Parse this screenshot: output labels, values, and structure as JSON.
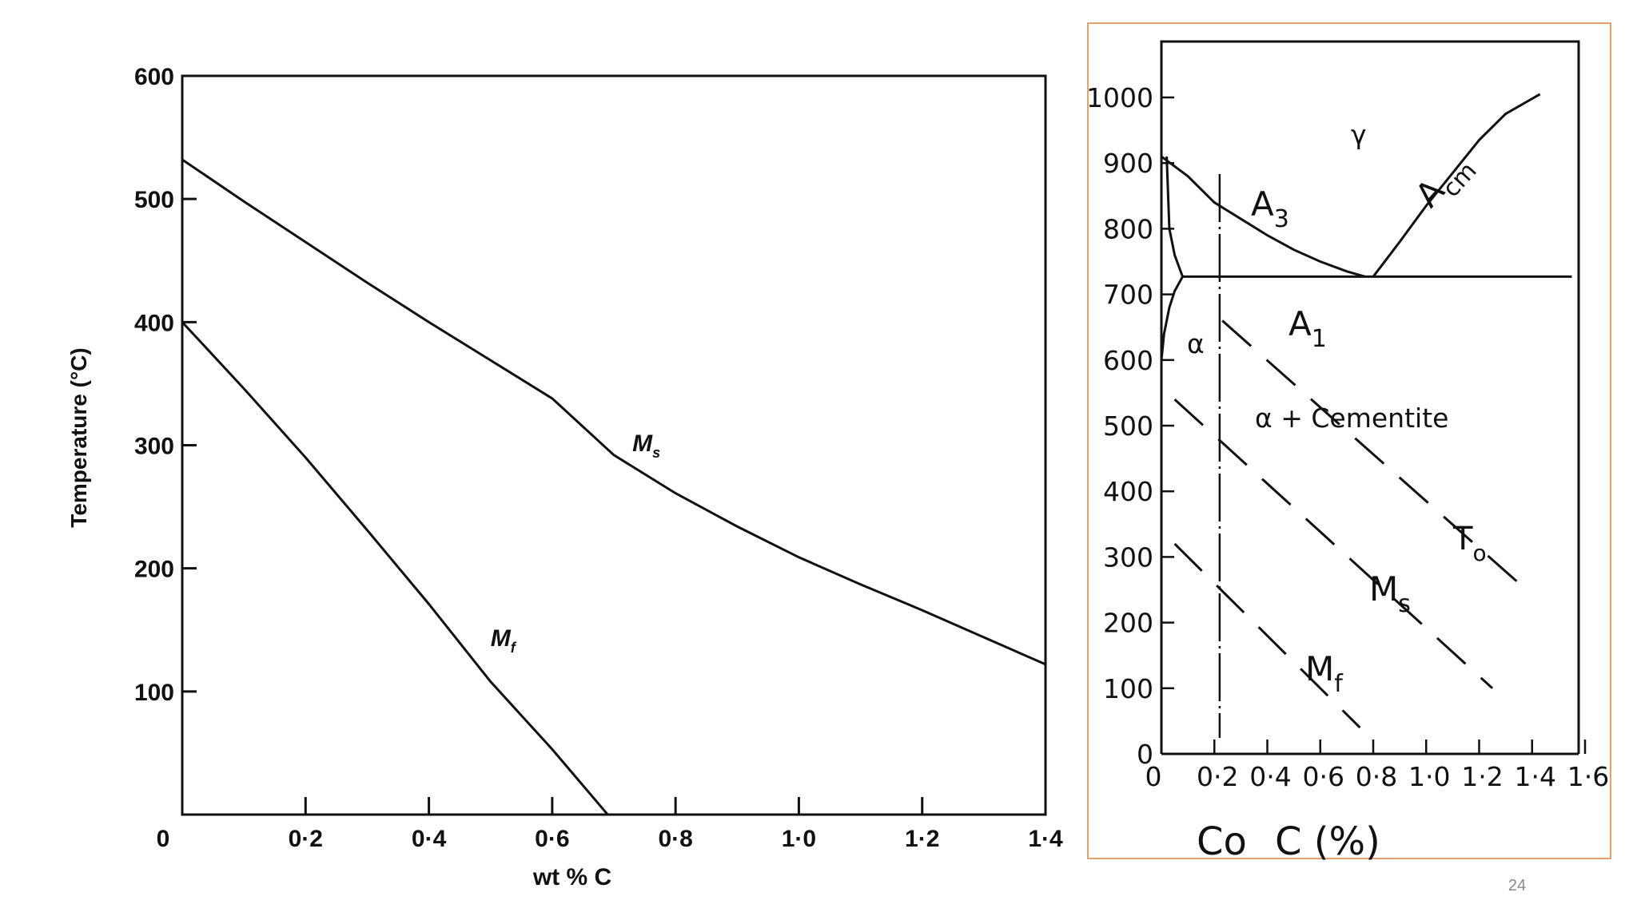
{
  "slide": {
    "page_number": "24",
    "border_color": "#e8a06a"
  },
  "chart_data": [
    {
      "type": "line",
      "title": "",
      "xlabel": "wt % C",
      "ylabel": "Temperature (°C)",
      "xlim": [
        0,
        1.4
      ],
      "ylim": [
        0,
        600
      ],
      "x_ticks": [
        0,
        0.2,
        0.4,
        0.6,
        0.8,
        1.0,
        1.2,
        1.4
      ],
      "x_tick_labels": [
        "0",
        "0·2",
        "0·4",
        "0·6",
        "0·8",
        "1·0",
        "1·2",
        "1·4"
      ],
      "y_ticks": [
        100,
        200,
        300,
        400,
        500,
        600
      ],
      "y_tick_labels": [
        "100",
        "200",
        "300",
        "400",
        "500",
        "600"
      ],
      "grid": false,
      "series": [
        {
          "name": "Ms",
          "label_main": "M",
          "label_sub": "s",
          "label_at": [
            0.73,
            295
          ],
          "x": [
            0,
            0.1,
            0.2,
            0.3,
            0.4,
            0.5,
            0.6,
            0.7,
            0.8,
            0.9,
            1.0,
            1.1,
            1.2,
            1.3,
            1.4
          ],
          "y": [
            532,
            498,
            465,
            432,
            400,
            369,
            338,
            292,
            261,
            234,
            209,
            187,
            166,
            144,
            122
          ]
        },
        {
          "name": "Mf",
          "label_main": "M",
          "label_sub": "f",
          "label_at": [
            0.5,
            137
          ],
          "x": [
            0,
            0.1,
            0.2,
            0.3,
            0.4,
            0.5,
            0.6,
            0.69
          ],
          "y": [
            400,
            346,
            290,
            231,
            171,
            108,
            53,
            0
          ]
        }
      ]
    },
    {
      "type": "line",
      "title": "",
      "xlabel_co": "Co",
      "xlabel": "C (%)",
      "ylabel": "",
      "xlim": [
        0,
        1.6
      ],
      "ylim": [
        0,
        1000
      ],
      "x_ticks": [
        0,
        0.2,
        0.4,
        0.6,
        0.8,
        1.0,
        1.2,
        1.4,
        1.6
      ],
      "x_tick_labels": [
        "0",
        "0·2",
        "0·4",
        "0·6",
        "0·8",
        "1·0",
        "1·2",
        "1·4",
        "1·6"
      ],
      "y_ticks": [
        0,
        100,
        200,
        300,
        400,
        500,
        600,
        700,
        800,
        900,
        1000
      ],
      "y_tick_labels": [
        "0",
        "100",
        "200",
        "300",
        "400",
        "500",
        "600",
        "700",
        "800",
        "900",
        "1000"
      ],
      "grid": false,
      "vertical_marker_x": 0.22,
      "annotations": {
        "gamma": "γ",
        "alpha": "α",
        "alpha_cementite": "α + Cementite",
        "a3_main": "A",
        "a3_sub": "3",
        "acm_main": "A",
        "acm_sub": "cm",
        "a1_main": "A",
        "a1_sub": "1",
        "to_main": "T",
        "to_sub": "o",
        "ms_main": "M",
        "ms_sub": "s",
        "mf_main": "M",
        "mf_sub": "f"
      },
      "series": [
        {
          "name": "A3",
          "style": "solid",
          "x": [
            0,
            0.1,
            0.2,
            0.3,
            0.4,
            0.5,
            0.6,
            0.7,
            0.77
          ],
          "y": [
            910,
            880,
            840,
            815,
            790,
            768,
            750,
            735,
            727
          ]
        },
        {
          "name": "Acm",
          "style": "solid",
          "x": [
            0.8,
            0.9,
            1.0,
            1.1,
            1.2,
            1.3,
            1.43
          ],
          "y": [
            727,
            780,
            835,
            885,
            935,
            975,
            1005
          ]
        },
        {
          "name": "A1",
          "style": "solid",
          "x": [
            0.08,
            1.55
          ],
          "y": [
            727,
            727
          ]
        },
        {
          "name": "alpha boundary",
          "style": "solid",
          "x": [
            0.02,
            0.03,
            0.05,
            0.08
          ],
          "y": [
            910,
            800,
            760,
            727
          ]
        },
        {
          "name": "alpha solvus",
          "style": "solid",
          "x": [
            0,
            0.01,
            0.03,
            0.05,
            0.08
          ],
          "y": [
            600,
            640,
            680,
            705,
            727
          ]
        },
        {
          "name": "To",
          "style": "dashed",
          "x": [
            0.23,
            1.35
          ],
          "y": [
            660,
            260
          ]
        },
        {
          "name": "Ms",
          "style": "dashed",
          "x": [
            0.05,
            1.25
          ],
          "y": [
            540,
            100
          ]
        },
        {
          "name": "Mf",
          "style": "dashed",
          "x": [
            0.05,
            0.75
          ],
          "y": [
            320,
            40
          ]
        }
      ]
    }
  ]
}
